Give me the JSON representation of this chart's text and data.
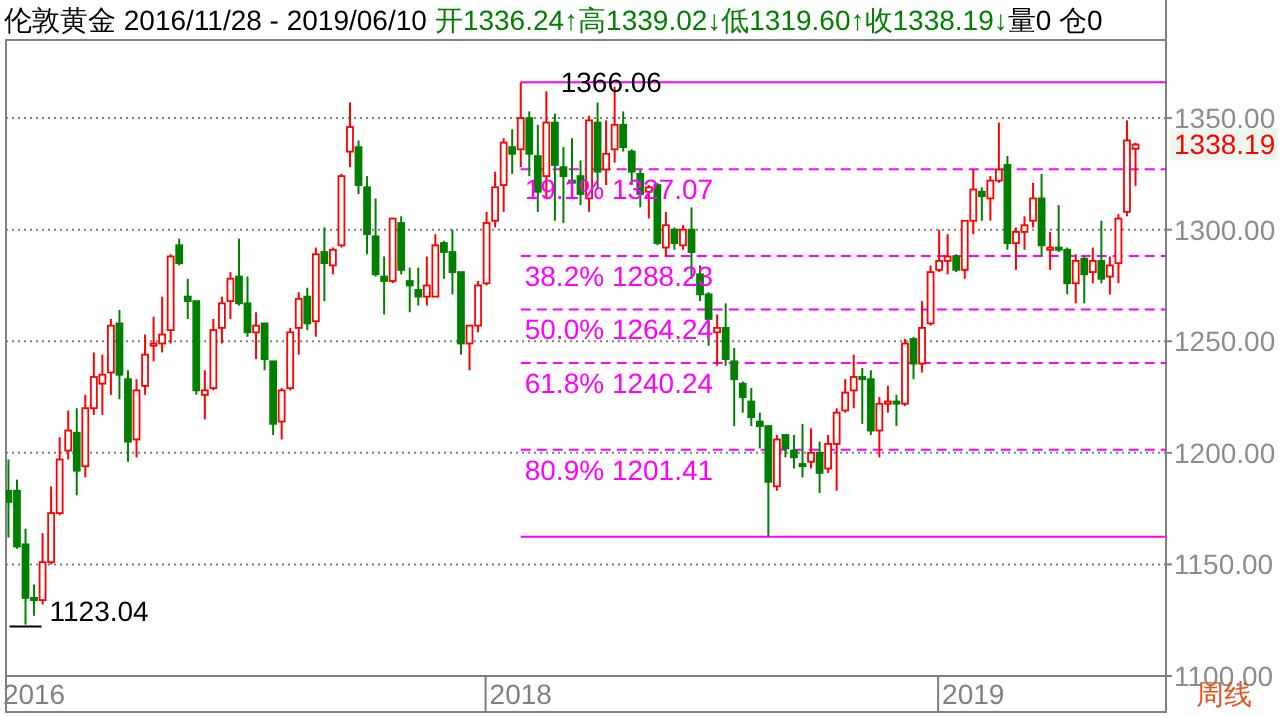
{
  "chart_data": {
    "type": "candlestick",
    "title": "伦敦黄金 2016/11/28 - 2019/06/10",
    "subtitle": "开1336.24↑高1339.02↓低1319.60↑收1338.19↓",
    "annotations": [
      "量0  仓0",
      "周线",
      {
        "text": "1366.06",
        "x": "2018-01-22",
        "y": 1366.06
      },
      {
        "text": "1123.04",
        "x": "2016-12-12",
        "y": 1123.04
      },
      {
        "text": "1338.19",
        "x": "2019-06-10",
        "y": 1338.19
      }
    ],
    "x": [
      "2016-11-28",
      "2016-12-05",
      "2016-12-12",
      "2016-12-19",
      "2016-12-26",
      "2017-01-02",
      "2017-01-09",
      "2017-01-16",
      "2017-01-23",
      "2017-01-30",
      "2017-02-06",
      "2017-02-13",
      "2017-02-20",
      "2017-02-27",
      "2017-03-06",
      "2017-03-13",
      "2017-03-20",
      "2017-03-27",
      "2017-04-03",
      "2017-04-10",
      "2017-04-17",
      "2017-04-24",
      "2017-05-01",
      "2017-05-08",
      "2017-05-15",
      "2017-05-22",
      "2017-05-29",
      "2017-06-05",
      "2017-06-12",
      "2017-06-19",
      "2017-06-26",
      "2017-07-03",
      "2017-07-10",
      "2017-07-17",
      "2017-07-24",
      "2017-07-31",
      "2017-08-07",
      "2017-08-14",
      "2017-08-21",
      "2017-08-28",
      "2017-09-04",
      "2017-09-11",
      "2017-09-18",
      "2017-09-25",
      "2017-10-02",
      "2017-10-09",
      "2017-10-16",
      "2017-10-23",
      "2017-10-30",
      "2017-11-06",
      "2017-11-13",
      "2017-11-20",
      "2017-11-27",
      "2017-12-04",
      "2017-12-11",
      "2017-12-18",
      "2017-12-25",
      "2018-01-01",
      "2018-01-08",
      "2018-01-15",
      "2018-01-22",
      "2018-01-29",
      "2018-02-05",
      "2018-02-12",
      "2018-02-19",
      "2018-02-26",
      "2018-03-05",
      "2018-03-12",
      "2018-03-19",
      "2018-03-26",
      "2018-04-02",
      "2018-04-09",
      "2018-04-16",
      "2018-04-23",
      "2018-04-30",
      "2018-05-07",
      "2018-05-14",
      "2018-05-21",
      "2018-05-28",
      "2018-06-04",
      "2018-06-11",
      "2018-06-18",
      "2018-06-25",
      "2018-07-02",
      "2018-07-09",
      "2018-07-16",
      "2018-07-23",
      "2018-07-30",
      "2018-08-06",
      "2018-08-13",
      "2018-08-20",
      "2018-08-27",
      "2018-09-03",
      "2018-09-10",
      "2018-09-17",
      "2018-09-24",
      "2018-10-01",
      "2018-10-08",
      "2018-10-15",
      "2018-10-22",
      "2018-10-29",
      "2018-11-05",
      "2018-11-12",
      "2018-11-19",
      "2018-11-26",
      "2018-12-03",
      "2018-12-10",
      "2018-12-17",
      "2018-12-24",
      "2018-12-31",
      "2019-01-07",
      "2019-01-14",
      "2019-01-21",
      "2019-01-28",
      "2019-02-04",
      "2019-02-11",
      "2019-02-18",
      "2019-02-25",
      "2019-03-04",
      "2019-03-11",
      "2019-03-18",
      "2019-03-25",
      "2019-04-01",
      "2019-04-08",
      "2019-04-15",
      "2019-04-22",
      "2019-04-29",
      "2019-05-06",
      "2019-05-13",
      "2019-05-20",
      "2019-05-27",
      "2019-06-03",
      "2019-06-10"
    ],
    "ohlc": [
      [
        1183,
        1197,
        1162,
        1178
      ],
      [
        1183,
        1188,
        1157,
        1158
      ],
      [
        1159,
        1166,
        1123.04,
        1135
      ],
      [
        1135,
        1141,
        1127,
        1134
      ],
      [
        1134,
        1164,
        1132,
        1151
      ],
      [
        1151,
        1185,
        1150,
        1173
      ],
      [
        1173,
        1207,
        1172,
        1197
      ],
      [
        1201,
        1219,
        1197,
        1210
      ],
      [
        1209,
        1220,
        1181,
        1192
      ],
      [
        1194,
        1226,
        1189,
        1220
      ],
      [
        1220,
        1245,
        1217,
        1234
      ],
      [
        1231,
        1244,
        1217,
        1235
      ],
      [
        1236,
        1260,
        1226,
        1257
      ],
      [
        1258,
        1264,
        1224,
        1235
      ],
      [
        1233,
        1237,
        1196,
        1205
      ],
      [
        1206,
        1233,
        1198,
        1228
      ],
      [
        1230,
        1253,
        1226,
        1244
      ],
      [
        1248,
        1261,
        1241,
        1249
      ],
      [
        1249,
        1270,
        1245,
        1253
      ],
      [
        1255,
        1289,
        1249,
        1288
      ],
      [
        1293,
        1296,
        1284,
        1285
      ],
      [
        1270,
        1278,
        1260,
        1268
      ],
      [
        1268,
        1268,
        1226,
        1228
      ],
      [
        1226,
        1237,
        1215,
        1228
      ],
      [
        1229,
        1260,
        1228,
        1255
      ],
      [
        1256,
        1270,
        1249,
        1267
      ],
      [
        1268,
        1281,
        1260,
        1278
      ],
      [
        1279,
        1296,
        1266,
        1267
      ],
      [
        1267,
        1279,
        1252,
        1254
      ],
      [
        1254,
        1263,
        1242,
        1257
      ],
      [
        1258,
        1258,
        1237,
        1242
      ],
      [
        1241,
        1241,
        1208,
        1213
      ],
      [
        1214,
        1229,
        1206,
        1228
      ],
      [
        1229,
        1256,
        1228,
        1254
      ],
      [
        1256,
        1272,
        1244,
        1269
      ],
      [
        1270,
        1274,
        1255,
        1258
      ],
      [
        1259,
        1292,
        1252,
        1289
      ],
      [
        1290,
        1301,
        1268,
        1285
      ],
      [
        1284,
        1292,
        1280,
        1291
      ],
      [
        1293,
        1325,
        1292,
        1324
      ],
      [
        1335,
        1357,
        1328,
        1346
      ],
      [
        1337,
        1340,
        1316,
        1320
      ],
      [
        1319,
        1324,
        1289,
        1298
      ],
      [
        1297,
        1314,
        1279,
        1280
      ],
      [
        1279,
        1288,
        1262,
        1277
      ],
      [
        1277,
        1305,
        1276,
        1305
      ],
      [
        1303,
        1306,
        1280,
        1282
      ],
      [
        1277,
        1283,
        1263,
        1275
      ],
      [
        1273,
        1283,
        1266,
        1270
      ],
      [
        1270,
        1288,
        1266,
        1275
      ],
      [
        1270,
        1298,
        1270,
        1293
      ],
      [
        1294,
        1295,
        1278,
        1290
      ],
      [
        1290,
        1300,
        1271,
        1281
      ],
      [
        1281,
        1281,
        1244,
        1249
      ],
      [
        1249,
        1257,
        1237,
        1257
      ],
      [
        1257,
        1277,
        1254,
        1275
      ],
      [
        1276,
        1308,
        1275,
        1303
      ],
      [
        1304,
        1326,
        1301,
        1319
      ],
      [
        1320,
        1341,
        1308,
        1339
      ],
      [
        1337,
        1345,
        1325,
        1334
      ],
      [
        1336,
        1366.06,
        1328,
        1350
      ],
      [
        1350,
        1353,
        1324,
        1334
      ],
      [
        1333,
        1347,
        1308,
        1317
      ],
      [
        1324,
        1362,
        1314,
        1348
      ],
      [
        1348,
        1352,
        1304,
        1329
      ],
      [
        1328,
        1337,
        1303,
        1324
      ],
      [
        1322,
        1341,
        1320,
        1321
      ],
      [
        1324,
        1331,
        1311,
        1316
      ],
      [
        1314,
        1351,
        1308,
        1349
      ],
      [
        1348,
        1357,
        1318,
        1326
      ],
      [
        1327,
        1349,
        1320,
        1334
      ],
      [
        1336,
        1364,
        1330,
        1347
      ],
      [
        1347,
        1353,
        1335,
        1337
      ],
      [
        1335,
        1336,
        1320,
        1326
      ],
      [
        1325,
        1327,
        1310,
        1316
      ],
      [
        1317,
        1320,
        1305,
        1319
      ],
      [
        1320,
        1321,
        1293,
        1294
      ],
      [
        1292,
        1308,
        1288,
        1302
      ],
      [
        1300,
        1301,
        1291,
        1294
      ],
      [
        1293,
        1302,
        1291,
        1300
      ],
      [
        1300,
        1310,
        1278,
        1290
      ],
      [
        1280,
        1284,
        1268,
        1271
      ],
      [
        1271,
        1272,
        1248,
        1260
      ],
      [
        1254,
        1262,
        1239,
        1256
      ],
      [
        1256,
        1267,
        1239,
        1242
      ],
      [
        1241,
        1247,
        1212,
        1233
      ],
      [
        1231,
        1232,
        1218,
        1225
      ],
      [
        1223,
        1229,
        1212,
        1216
      ],
      [
        1214,
        1218,
        1202,
        1212
      ],
      [
        1212,
        1212,
        1162.4,
        1187
      ],
      [
        1185,
        1208,
        1183,
        1206
      ],
      [
        1208,
        1208,
        1198,
        1202
      ],
      [
        1201,
        1208,
        1193,
        1198
      ],
      [
        1195,
        1213,
        1189,
        1194
      ],
      [
        1196,
        1211,
        1193,
        1200
      ],
      [
        1200,
        1205,
        1182,
        1191
      ],
      [
        1193,
        1208,
        1191,
        1204
      ],
      [
        1204,
        1220,
        1183,
        1218
      ],
      [
        1219,
        1233,
        1218,
        1227
      ],
      [
        1228,
        1244,
        1220,
        1234
      ],
      [
        1234,
        1238,
        1213,
        1233
      ],
      [
        1233,
        1237,
        1208,
        1210
      ],
      [
        1210,
        1225,
        1198,
        1222
      ],
      [
        1222,
        1230,
        1218,
        1223
      ],
      [
        1223,
        1226,
        1212,
        1222
      ],
      [
        1222,
        1251,
        1221,
        1249
      ],
      [
        1251,
        1252,
        1233,
        1240
      ],
      [
        1240,
        1268,
        1236,
        1256
      ],
      [
        1258,
        1284,
        1257,
        1281
      ],
      [
        1282,
        1300,
        1281,
        1286
      ],
      [
        1286,
        1298,
        1280,
        1288
      ],
      [
        1288,
        1289,
        1281,
        1282
      ],
      [
        1282,
        1304,
        1278,
        1304
      ],
      [
        1304,
        1327,
        1298,
        1318
      ],
      [
        1317,
        1319,
        1304,
        1315
      ],
      [
        1314,
        1324,
        1304,
        1322
      ],
      [
        1322,
        1348,
        1321,
        1327
      ],
      [
        1329,
        1333,
        1291,
        1294
      ],
      [
        1294,
        1301,
        1282,
        1299
      ],
      [
        1299,
        1306,
        1291,
        1302
      ],
      [
        1304,
        1321,
        1301,
        1314
      ],
      [
        1314,
        1325,
        1288,
        1293
      ],
      [
        1291,
        1299,
        1282,
        1292
      ],
      [
        1292,
        1311,
        1290,
        1291
      ],
      [
        1291,
        1292,
        1271,
        1276
      ],
      [
        1276,
        1289,
        1267,
        1286
      ],
      [
        1287,
        1288,
        1267,
        1280
      ],
      [
        1281,
        1292,
        1276,
        1286
      ],
      [
        1286,
        1304,
        1276,
        1278
      ],
      [
        1279,
        1288,
        1271,
        1284
      ],
      [
        1285,
        1307,
        1276,
        1305
      ],
      [
        1308,
        1349,
        1306,
        1340
      ],
      [
        1336.24,
        1339.02,
        1319.6,
        1338.19
      ]
    ],
    "xlim": [
      "2016-11-26",
      "2019-07-05"
    ],
    "xticks": [
      {
        "value": "2016-12-19",
        "label": "2016"
      },
      {
        "value": "2018-01-22",
        "label": "2018"
      },
      {
        "value": "2019-01-28",
        "label": "2019"
      }
    ],
    "ylim": [
      1100,
      1385
    ],
    "yticks": [
      {
        "value": 1100,
        "label": "1100.00"
      },
      {
        "value": 1150,
        "label": "1150.00"
      },
      {
        "value": 1200,
        "label": "1200.00"
      },
      {
        "value": 1250,
        "label": "1250.00"
      },
      {
        "value": 1300,
        "label": "1300.00"
      },
      {
        "value": 1350,
        "label": "1350.00"
      }
    ],
    "grid": "y",
    "ref_lines": [
      {
        "axis": "y",
        "value": 1366.06,
        "color": "#ff00ff",
        "line_style": "solid"
      },
      {
        "axis": "y",
        "value": 1327.07,
        "label": "19.1% 1327.07",
        "color": "#ff00ff",
        "line_style": "dashed"
      },
      {
        "axis": "y",
        "value": 1288.23,
        "label": "38.2% 1288.23",
        "color": "#ff00ff",
        "line_style": "dashed"
      },
      {
        "axis": "y",
        "value": 1264.24,
        "label": "50.0% 1264.24",
        "color": "#ff00ff",
        "line_style": "dashed"
      },
      {
        "axis": "y",
        "value": 1240.24,
        "label": "61.8% 1240.24",
        "color": "#ff00ff",
        "line_style": "dashed"
      },
      {
        "axis": "y",
        "value": 1201.41,
        "label": "80.9% 1201.41",
        "color": "#ff00ff",
        "line_style": "dashed"
      },
      {
        "axis": "y",
        "value": 1162.4,
        "color": "#ff00ff",
        "line_style": "solid"
      }
    ]
  }
}
